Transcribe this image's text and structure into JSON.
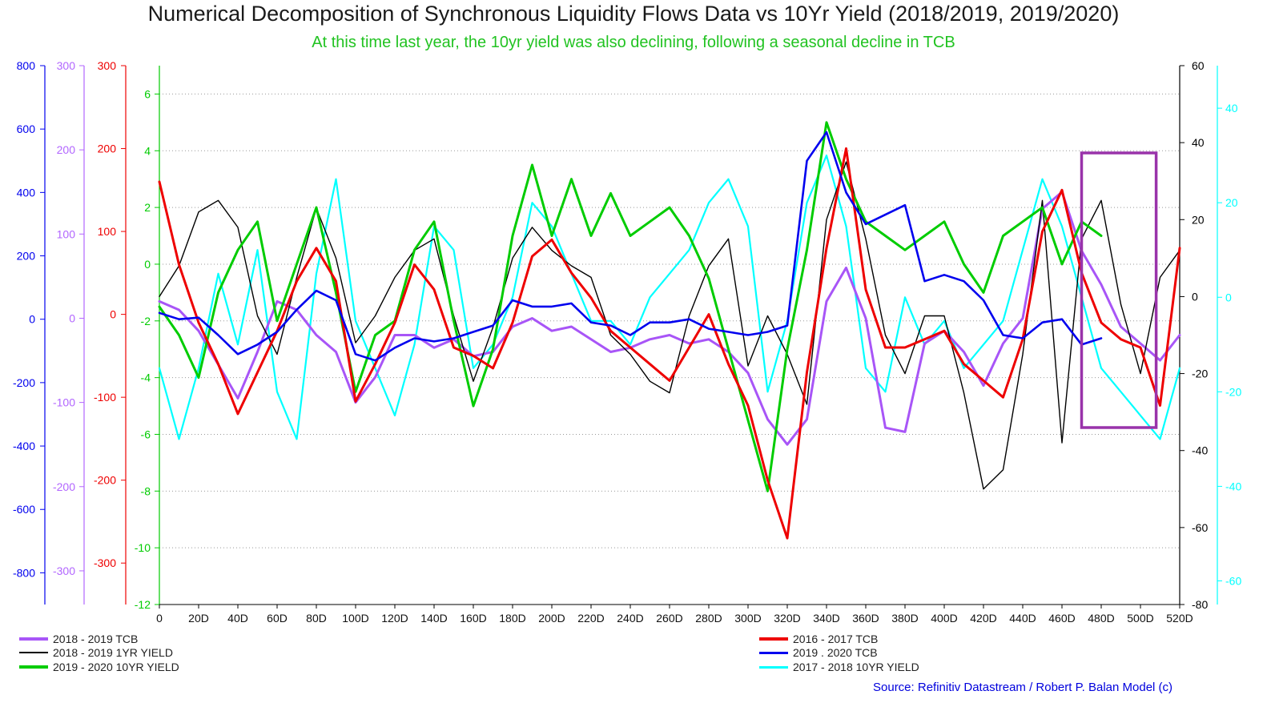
{
  "chart_data": {
    "type": "line",
    "title": "Numerical Decomposition of Synchronous Liquidity Flows Data vs 10Yr Yield (2018/2019, 2019/2020)",
    "subtitle": "At this time last year, the 10yr yield was also declining, following a seasonal decline in TCB",
    "x_ticks": [
      "0",
      "20D",
      "40D",
      "60D",
      "80D",
      "100D",
      "120D",
      "140D",
      "160D",
      "180D",
      "200D",
      "220D",
      "240D",
      "260D",
      "280D",
      "300D",
      "320D",
      "340D",
      "360D",
      "380D",
      "400D",
      "420D",
      "440D",
      "460D",
      "480D",
      "500D",
      "520D"
    ],
    "xlim": [
      0,
      520
    ],
    "axes": {
      "blue_left": {
        "color": "#0000ee",
        "ylim": [
          -900,
          800
        ],
        "ticks": [
          "800",
          "600",
          "400",
          "200",
          "0",
          "-200",
          "-400",
          "-600",
          "-800"
        ]
      },
      "purple_left": {
        "color": "#b266ff",
        "ylim": [
          -340,
          300
        ],
        "ticks": [
          "300",
          "200",
          "100",
          "0",
          "-100",
          "-200",
          "-300"
        ]
      },
      "red_left": {
        "color": "#ee0000",
        "ylim": [
          -350,
          300
        ],
        "ticks": [
          "300",
          "200",
          "100",
          "0",
          "-100",
          "-200",
          "-300"
        ]
      },
      "green_inner": {
        "color": "#00cc00",
        "ylim": [
          -12,
          7
        ],
        "ticks": [
          "6",
          "4",
          "2",
          "0",
          "-2",
          "-4",
          "-6",
          "-8",
          "-10",
          "-12"
        ]
      },
      "black_right": {
        "color": "#000000",
        "ylim": [
          -80,
          60
        ],
        "ticks": [
          "60",
          "40",
          "20",
          "0",
          "-20",
          "-40",
          "-60",
          "-80"
        ]
      },
      "cyan_right": {
        "color": "#00ffff",
        "ylim": [
          -65,
          49
        ],
        "ticks": [
          "40",
          "20",
          "0",
          "-20",
          "-40",
          "-60"
        ]
      }
    },
    "series": [
      {
        "name": "2018 - 2019 TCB",
        "color": "#a855f7",
        "axis": "purple_left",
        "width": 3,
        "x": [
          0,
          10,
          20,
          30,
          40,
          50,
          60,
          70,
          80,
          90,
          100,
          110,
          120,
          130,
          140,
          150,
          160,
          170,
          180,
          190,
          200,
          210,
          220,
          230,
          240,
          250,
          260,
          270,
          280,
          290,
          300,
          310,
          320,
          330,
          340,
          350,
          360,
          370,
          380,
          390,
          400,
          410,
          420,
          430,
          440,
          450,
          460,
          470,
          480,
          490,
          500,
          510,
          520
        ],
        "y": [
          20,
          10,
          -15,
          -55,
          -95,
          -40,
          20,
          10,
          -20,
          -40,
          -100,
          -70,
          -20,
          -20,
          -35,
          -25,
          -45,
          -40,
          -10,
          0,
          -15,
          -10,
          -25,
          -40,
          -35,
          -25,
          -20,
          -30,
          -25,
          -40,
          -65,
          -120,
          -150,
          -120,
          20,
          60,
          0,
          -130,
          -135,
          -30,
          -15,
          -40,
          -80,
          -30,
          0,
          130,
          150,
          80,
          40,
          -10,
          -30,
          -50,
          -20
        ]
      },
      {
        "name": "2016 - 2017 TCB",
        "color": "#ee0000",
        "axis": "red_left",
        "width": 3,
        "x": [
          0,
          10,
          20,
          30,
          40,
          50,
          60,
          70,
          80,
          90,
          100,
          110,
          120,
          130,
          140,
          150,
          160,
          170,
          180,
          190,
          200,
          210,
          220,
          230,
          240,
          250,
          260,
          270,
          280,
          290,
          300,
          310,
          320,
          330,
          340,
          350,
          360,
          370,
          380,
          390,
          400,
          410,
          420,
          430,
          440,
          450,
          460,
          470,
          480,
          490,
          500,
          510,
          520
        ],
        "y": [
          160,
          60,
          -10,
          -60,
          -120,
          -70,
          -20,
          40,
          80,
          40,
          -105,
          -60,
          -10,
          60,
          30,
          -40,
          -50,
          -65,
          -10,
          70,
          90,
          50,
          20,
          -20,
          -40,
          -60,
          -80,
          -40,
          0,
          -60,
          -110,
          -200,
          -270,
          -70,
          80,
          200,
          30,
          -40,
          -40,
          -30,
          -20,
          -60,
          -80,
          -100,
          -30,
          100,
          150,
          50,
          -10,
          -30,
          -40,
          -110,
          80
        ]
      },
      {
        "name": "2018 - 2019 1YR YIELD",
        "color": "#000000",
        "axis": "black_right",
        "width": 1.4,
        "x": [
          0,
          10,
          20,
          30,
          40,
          50,
          60,
          70,
          80,
          90,
          100,
          110,
          120,
          130,
          140,
          150,
          160,
          170,
          180,
          190,
          200,
          210,
          220,
          230,
          240,
          250,
          260,
          270,
          280,
          290,
          300,
          310,
          320,
          330,
          340,
          350,
          360,
          370,
          380,
          390,
          400,
          410,
          420,
          430,
          440,
          450,
          460,
          470,
          480,
          490,
          500,
          510,
          520
        ],
        "y": [
          0,
          8,
          22,
          25,
          18,
          -5,
          -15,
          5,
          23,
          10,
          -12,
          -5,
          5,
          12,
          15,
          -5,
          -22,
          -8,
          10,
          18,
          12,
          8,
          5,
          -10,
          -15,
          -22,
          -25,
          -5,
          8,
          15,
          -18,
          -5,
          -15,
          -28,
          20,
          35,
          15,
          -10,
          -20,
          -5,
          -5,
          -25,
          -50,
          -45,
          -15,
          25,
          -38,
          15,
          25,
          -2,
          -20,
          5,
          12
        ]
      },
      {
        "name": "2019 - 2020 10YR YIELD",
        "color": "#00cc00",
        "axis": "green_inner",
        "width": 3,
        "x": [
          0,
          10,
          20,
          30,
          40,
          50,
          60,
          70,
          80,
          90,
          100,
          110,
          120,
          130,
          140,
          150,
          160,
          170,
          180,
          190,
          200,
          210,
          220,
          230,
          240,
          250,
          260,
          270,
          280,
          290,
          300,
          310,
          320,
          330,
          340,
          350,
          360,
          370,
          380,
          390,
          400,
          410,
          420,
          430,
          440,
          450,
          460,
          470,
          480,
          490,
          500,
          510,
          520
        ],
        "y": [
          -1.5,
          -2.5,
          -4,
          -1,
          0.5,
          1.5,
          -2,
          0,
          2,
          -1,
          -4.5,
          -2.5,
          -2,
          0.5,
          1.5,
          -2,
          -5,
          -3,
          1,
          3.5,
          1,
          3,
          1,
          2.5,
          1,
          1.5,
          2,
          1,
          -0.5,
          -3,
          -5.5,
          -8,
          -3,
          0.5,
          5,
          3,
          1.5,
          1,
          0.5,
          1,
          1.5,
          0,
          -1,
          1,
          1.5,
          2,
          0,
          1.5,
          1,
          null,
          null,
          null,
          null
        ]
      },
      {
        "name": "2019 . 2020 TCB",
        "color": "#0000ee",
        "axis": "blue_left",
        "width": 2.6,
        "x": [
          0,
          10,
          20,
          30,
          40,
          50,
          60,
          70,
          80,
          90,
          100,
          110,
          120,
          130,
          140,
          150,
          160,
          170,
          180,
          190,
          200,
          210,
          220,
          230,
          240,
          250,
          260,
          270,
          280,
          290,
          300,
          310,
          320,
          330,
          340,
          350,
          360,
          370,
          380,
          390,
          400,
          410,
          420,
          430,
          440,
          450,
          460,
          470,
          480
        ],
        "y": [
          20,
          0,
          5,
          -50,
          -110,
          -80,
          -40,
          30,
          90,
          60,
          -110,
          -130,
          -90,
          -60,
          -70,
          -60,
          -40,
          -20,
          60,
          40,
          40,
          50,
          -10,
          -20,
          -50,
          -10,
          -10,
          0,
          -30,
          -40,
          -50,
          -40,
          -20,
          500,
          590,
          400,
          300,
          330,
          360,
          120,
          140,
          120,
          60,
          -50,
          -60,
          -10,
          0,
          -80,
          -60
        ]
      },
      {
        "name": "2017 - 2018 10YR YIELD",
        "color": "#00ffff",
        "axis": "cyan_right",
        "width": 2.2,
        "x": [
          0,
          10,
          20,
          30,
          40,
          50,
          60,
          70,
          80,
          90,
          100,
          110,
          120,
          130,
          140,
          150,
          160,
          170,
          180,
          190,
          200,
          210,
          220,
          230,
          240,
          250,
          260,
          270,
          280,
          290,
          300,
          310,
          320,
          330,
          340,
          350,
          360,
          370,
          380,
          390,
          400,
          410,
          420,
          430,
          440,
          450,
          460,
          470,
          480,
          490,
          500,
          510,
          520
        ],
        "y": [
          -15,
          -30,
          -15,
          5,
          -10,
          10,
          -20,
          -30,
          5,
          25,
          -5,
          -15,
          -25,
          -10,
          15,
          10,
          -15,
          -10,
          0,
          20,
          15,
          5,
          -5,
          -5,
          -10,
          0,
          5,
          10,
          20,
          25,
          15,
          -20,
          -5,
          20,
          30,
          15,
          -15,
          -20,
          0,
          -10,
          -5,
          -15,
          -10,
          -5,
          10,
          25,
          15,
          0,
          -15,
          -20,
          -25,
          -30,
          -15
        ]
      }
    ],
    "legend": [
      {
        "label": "2018 - 2019 TCB",
        "color": "#a855f7",
        "width": 4
      },
      {
        "label": "2018 - 2019 1YR YIELD",
        "color": "#000000",
        "width": 2
      },
      {
        "label": "2019 - 2020 10YR YIELD",
        "color": "#00cc00",
        "width": 4
      },
      {
        "label": "2016 - 2017 TCB",
        "color": "#ee0000",
        "width": 4
      },
      {
        "label": "2019 . 2020 TCB",
        "color": "#0000ee",
        "width": 3
      },
      {
        "label": "2017 - 2018 10YR YIELD",
        "color": "#00ffff",
        "width": 3
      }
    ],
    "annotations": [
      {
        "type": "rectangle",
        "color": "#9933aa",
        "x_range": [
          470,
          508
        ]
      }
    ],
    "source": "Source: Refinitiv Datastream /  Robert P. Balan Model (c)"
  }
}
